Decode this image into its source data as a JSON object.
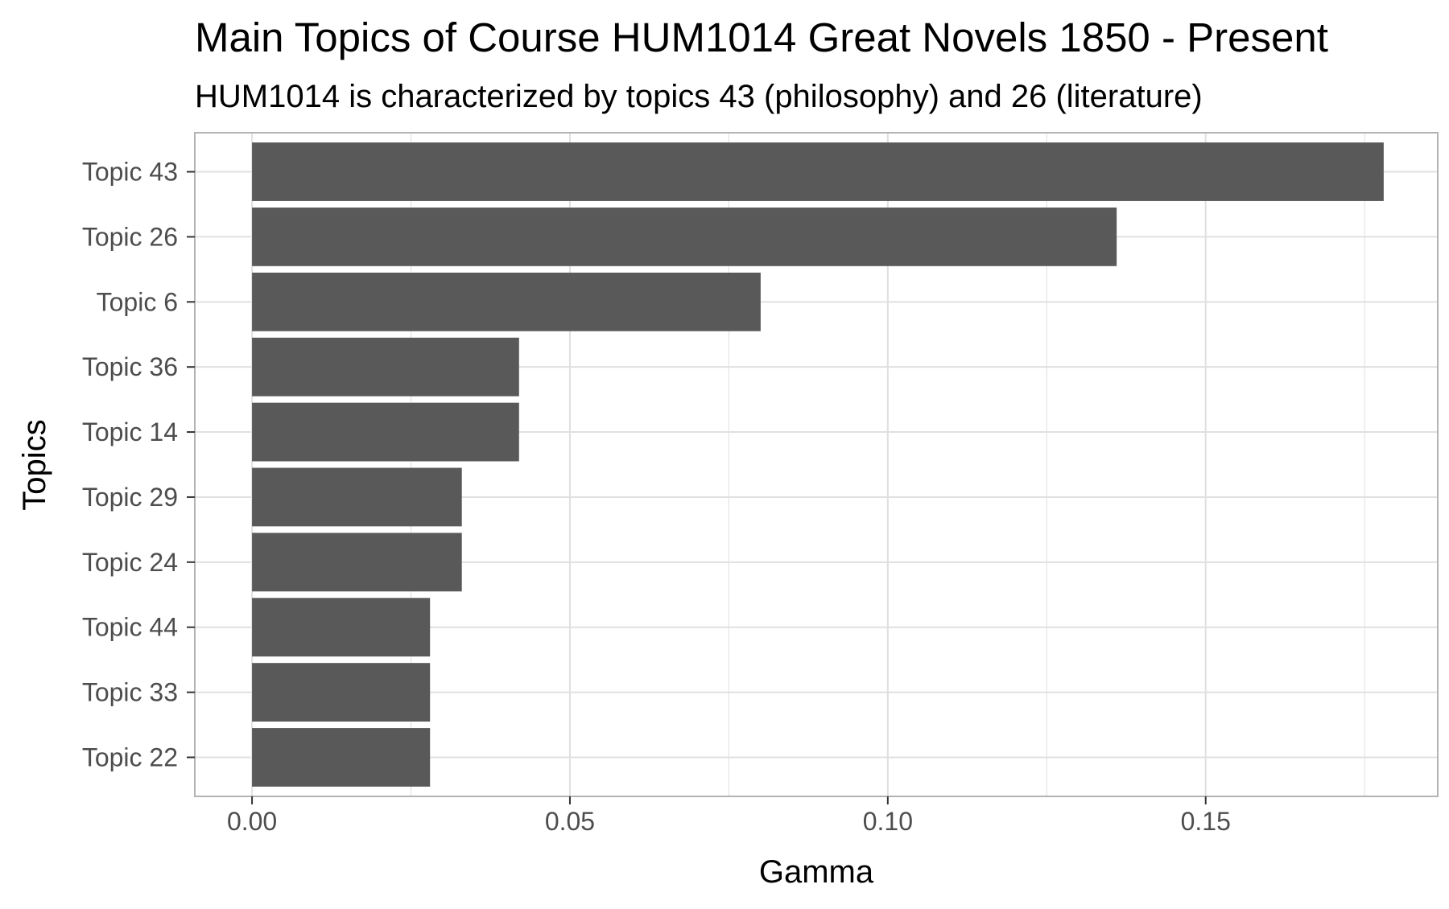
{
  "chart_data": {
    "type": "bar",
    "orientation": "horizontal",
    "title": "Main Topics of Course HUM1014 Great Novels 1850 - Present",
    "subtitle": "HUM1014 is characterized by topics 43 (philosophy) and 26 (literature)",
    "xlabel": "Gamma",
    "ylabel": "Topics",
    "categories": [
      "Topic 43",
      "Topic 26",
      "Topic 6",
      "Topic 36",
      "Topic 14",
      "Topic 29",
      "Topic 24",
      "Topic 44",
      "Topic 33",
      "Topic 22"
    ],
    "values": [
      0.178,
      0.136,
      0.08,
      0.042,
      0.042,
      0.033,
      0.033,
      0.028,
      0.028,
      0.028
    ],
    "xlim": [
      -0.009,
      0.1865
    ],
    "x_ticks": [
      0.0,
      0.05,
      0.1,
      0.15
    ],
    "x_tick_labels": [
      "0.00",
      "0.05",
      "0.10",
      "0.15"
    ],
    "grid": true,
    "legend": "none",
    "colors": {
      "bar": "#595959",
      "grid": "#e0e0e0",
      "panel_border": "#b3b3b3",
      "tick_text": "#4d4d4d",
      "title_text": "#000000"
    }
  }
}
